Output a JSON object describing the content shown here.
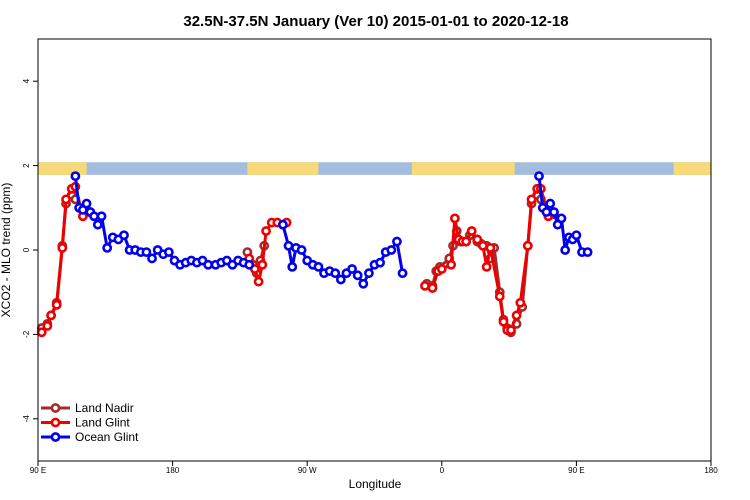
{
  "chart_data": {
    "type": "line",
    "title": "32.5N-37.5N January (Ver 10)   2015-01-01 to 2020-12-18",
    "xlabel": "Longitude",
    "ylabel": "XCO2 - MLO trend (ppm)",
    "xlim": [
      -90,
      270
    ],
    "ylim": [
      -5,
      5
    ],
    "x_ticks": [
      {
        "value": -90,
        "label": "90 E"
      },
      {
        "value": -18,
        "label": "180"
      },
      {
        "value": 54,
        "label": "90 W"
      },
      {
        "value": 126,
        "label": "0"
      },
      {
        "value": 198,
        "label": "90 E"
      },
      {
        "value": 270,
        "label": "180"
      }
    ],
    "y_ticks": [
      {
        "value": -4,
        "label": "-4"
      },
      {
        "value": -2,
        "label": "-2"
      },
      {
        "value": 0,
        "label": "0"
      },
      {
        "value": 2,
        "label": "2"
      },
      {
        "value": 4,
        "label": "4"
      }
    ],
    "land_ocean_band": {
      "y_range": [
        1.78,
        2.08
      ],
      "ocean_color": "#A4BDDF",
      "land_color": "#F8D978",
      "land_segments": [
        [
          -90,
          -64
        ],
        [
          22,
          60
        ],
        [
          110,
          165
        ],
        [
          250,
          270
        ]
      ]
    },
    "legend_position": "bottom-left",
    "series": [
      {
        "name": "Land Nadir",
        "color": "#A52A2A",
        "points": [
          [
            -88,
            -1.85
          ],
          [
            -85,
            -1.75
          ],
          [
            -83,
            -1.55
          ],
          [
            -80,
            -1.25
          ],
          [
            -77,
            0.1
          ],
          [
            -75,
            1.1
          ],
          [
            -72,
            1.3
          ],
          [
            -70,
            1.2
          ],
          [
            22,
            -0.05
          ],
          [
            25,
            -0.35
          ],
          [
            27,
            -0.55
          ],
          [
            29,
            -0.25
          ],
          [
            31,
            0.1
          ],
          [
            118,
            -0.8
          ],
          [
            121,
            -0.85
          ],
          [
            123,
            -0.5
          ],
          [
            125,
            -0.4
          ],
          [
            130,
            -0.2
          ],
          [
            132,
            0.1
          ],
          [
            134,
            0.45
          ],
          [
            136,
            0.2
          ],
          [
            139,
            0.2
          ],
          [
            141,
            0.35
          ],
          [
            145,
            0.2
          ],
          [
            147,
            0.15
          ],
          [
            150,
            0.1
          ],
          [
            152,
            -0.2
          ],
          [
            154,
            0.05
          ],
          [
            157,
            -1.0
          ],
          [
            159,
            -1.65
          ],
          [
            161,
            -1.85
          ],
          [
            163,
            -1.95
          ],
          [
            166,
            -1.75
          ],
          [
            169,
            -1.35
          ],
          [
            172,
            0.1
          ],
          [
            174,
            1.1
          ],
          [
            177,
            1.3
          ],
          [
            179,
            1.2
          ]
        ]
      },
      {
        "name": "Land Glint",
        "color": "#EE0000",
        "points": [
          [
            -88,
            -1.95
          ],
          [
            -85,
            -1.8
          ],
          [
            -83,
            -1.55
          ],
          [
            -80,
            -1.3
          ],
          [
            -77,
            0.05
          ],
          [
            -75,
            1.2
          ],
          [
            -72,
            1.45
          ],
          [
            -70,
            1.5
          ],
          [
            -66,
            0.8
          ],
          [
            -63,
            0.9
          ],
          [
            23,
            -0.2
          ],
          [
            26,
            -0.45
          ],
          [
            28,
            -0.75
          ],
          [
            30,
            -0.35
          ],
          [
            32,
            0.45
          ],
          [
            35,
            0.65
          ],
          [
            38,
            0.65
          ],
          [
            41,
            0.6
          ],
          [
            43,
            0.65
          ],
          [
            117,
            -0.85
          ],
          [
            121,
            -0.9
          ],
          [
            124,
            -0.5
          ],
          [
            126,
            -0.45
          ],
          [
            131,
            -0.35
          ],
          [
            133,
            0.75
          ],
          [
            135,
            0.25
          ],
          [
            137,
            0.2
          ],
          [
            139,
            0.2
          ],
          [
            142,
            0.45
          ],
          [
            145,
            0.25
          ],
          [
            148,
            0.1
          ],
          [
            150,
            -0.4
          ],
          [
            152,
            0.05
          ],
          [
            157,
            -1.1
          ],
          [
            159,
            -1.7
          ],
          [
            161,
            -1.9
          ],
          [
            163,
            -1.9
          ],
          [
            166,
            -1.55
          ],
          [
            168,
            -1.25
          ],
          [
            172,
            0.1
          ],
          [
            174,
            1.2
          ],
          [
            177,
            1.45
          ],
          [
            179,
            1.45
          ],
          [
            183,
            0.8
          ],
          [
            186,
            0.85
          ]
        ]
      },
      {
        "name": "Ocean Glint",
        "color": "#0000EE",
        "points": [
          [
            -70,
            1.75
          ],
          [
            -68,
            1.0
          ],
          [
            -66,
            0.95
          ],
          [
            -64,
            1.1
          ],
          [
            -62,
            0.9
          ],
          [
            -60,
            0.8
          ],
          [
            -58,
            0.6
          ],
          [
            -56,
            0.8
          ],
          [
            -53,
            0.05
          ],
          [
            -50,
            0.3
          ],
          [
            -47,
            0.25
          ],
          [
            -44,
            0.35
          ],
          [
            -41,
            0.0
          ],
          [
            -38,
            0.0
          ],
          [
            -35,
            -0.05
          ],
          [
            -32,
            -0.05
          ],
          [
            -29,
            -0.2
          ],
          [
            -26,
            0.0
          ],
          [
            -23,
            -0.1
          ],
          [
            -20,
            -0.05
          ],
          [
            -17,
            -0.25
          ],
          [
            -14,
            -0.35
          ],
          [
            -11,
            -0.3
          ],
          [
            -8,
            -0.25
          ],
          [
            -5,
            -0.3
          ],
          [
            -2,
            -0.25
          ],
          [
            1,
            -0.35
          ],
          [
            5,
            -0.35
          ],
          [
            8,
            -0.3
          ],
          [
            11,
            -0.25
          ],
          [
            14,
            -0.35
          ],
          [
            17,
            -0.25
          ],
          [
            20,
            -0.3
          ],
          [
            23,
            -0.35
          ],
          [
            41,
            0.6
          ],
          [
            44,
            0.1
          ],
          [
            46,
            -0.4
          ],
          [
            48,
            0.05
          ],
          [
            51,
            0.0
          ],
          [
            54,
            -0.25
          ],
          [
            57,
            -0.35
          ],
          [
            60,
            -0.4
          ],
          [
            63,
            -0.55
          ],
          [
            66,
            -0.5
          ],
          [
            69,
            -0.55
          ],
          [
            72,
            -0.7
          ],
          [
            75,
            -0.55
          ],
          [
            78,
            -0.45
          ],
          [
            81,
            -0.6
          ],
          [
            84,
            -0.8
          ],
          [
            87,
            -0.55
          ],
          [
            90,
            -0.35
          ],
          [
            93,
            -0.3
          ],
          [
            96,
            -0.05
          ],
          [
            99,
            0.0
          ],
          [
            102,
            0.2
          ],
          [
            105,
            -0.55
          ],
          [
            178,
            1.75
          ],
          [
            180,
            1.0
          ],
          [
            182,
            0.9
          ],
          [
            184,
            1.1
          ],
          [
            186,
            0.9
          ],
          [
            188,
            0.6
          ],
          [
            190,
            0.75
          ],
          [
            192,
            0.0
          ],
          [
            194,
            0.3
          ],
          [
            196,
            0.25
          ],
          [
            198,
            0.35
          ],
          [
            201,
            -0.05
          ],
          [
            204,
            -0.05
          ]
        ]
      }
    ]
  }
}
